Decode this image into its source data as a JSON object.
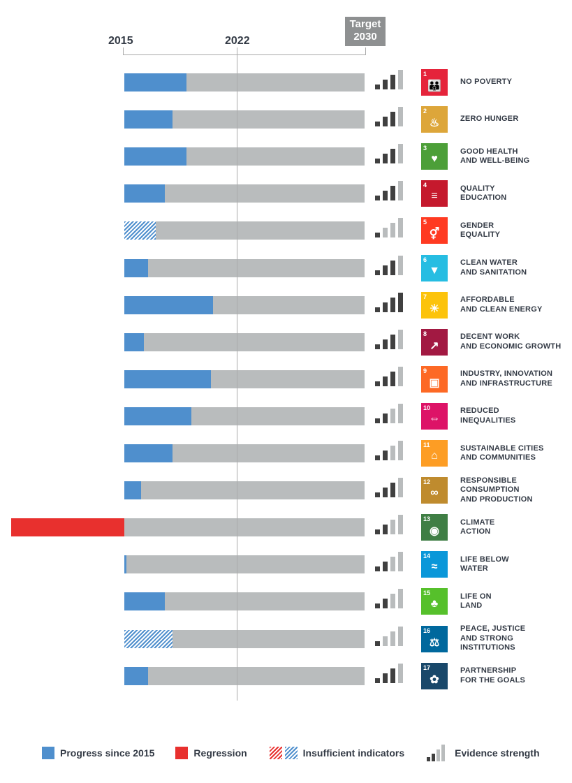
{
  "header": {
    "start_label": "2015",
    "mid_label": "2022",
    "target_label": "Target\n2030"
  },
  "colors": {
    "progress": "#4f8fcd",
    "regression": "#e8302e",
    "track": "#b9bcbd",
    "evidence_on": "#404040",
    "evidence_off": "#b9bcbd"
  },
  "chart_data": {
    "type": "bar",
    "orientation": "horizontal",
    "xlim": [
      2015,
      2030
    ],
    "value_unit": "fraction of progress needed from 2015 to 2030 target",
    "reference_lines": [
      2022
    ],
    "categories": [
      "NO POVERTY",
      "ZERO HUNGER",
      "GOOD HEALTH\nAND WELL-BEING",
      "QUALITY\nEDUCATION",
      "GENDER\nEQUALITY",
      "CLEAN WATER\nAND SANITATION",
      "AFFORDABLE\nAND CLEAN ENERGY",
      "DECENT WORK\nAND ECONOMIC GROWTH",
      "INDUSTRY, INNOVATION\nAND INFRASTRUCTURE",
      "REDUCED\nINEQUALITIES",
      "SUSTAINABLE CITIES\nAND COMMUNITIES",
      "RESPONSIBLE\nCONSUMPTION\nAND PRODUCTION",
      "CLIMATE\nACTION",
      "LIFE BELOW\nWATER",
      "LIFE ON\nLAND",
      "PEACE, JUSTICE\nAND STRONG\nINSTITUTIONS",
      "PARTNERSHIP\nFOR THE GOALS"
    ],
    "goal_numbers": [
      "1",
      "2",
      "3",
      "4",
      "5",
      "6",
      "7",
      "8",
      "9",
      "10",
      "11",
      "12",
      "13",
      "14",
      "15",
      "16",
      "17"
    ],
    "goal_colors": [
      "#E5243B",
      "#DDA63A",
      "#4C9F38",
      "#C5192D",
      "#FF3A21",
      "#26BDE2",
      "#FCC30B",
      "#A21942",
      "#FD6925",
      "#DD1367",
      "#FD9D24",
      "#BF8B2E",
      "#3F7E44",
      "#0A97D9",
      "#56C02B",
      "#00689D",
      "#19486A"
    ],
    "goal_icons": [
      "people",
      "bowl",
      "heartbeat",
      "book",
      "gender",
      "droplet",
      "sun",
      "growth-chart",
      "cubes",
      "equals-arrows",
      "buildings",
      "infinity",
      "eye-globe",
      "fish",
      "tree-bird",
      "dove-gavel",
      "flower"
    ],
    "values": [
      0.26,
      0.2,
      0.26,
      0.17,
      0.13,
      0.1,
      0.37,
      0.08,
      0.36,
      0.28,
      0.2,
      0.07,
      -0.47,
      0.01,
      0.17,
      0.2,
      0.1
    ],
    "insufficient_indicators": [
      false,
      false,
      false,
      false,
      true,
      false,
      false,
      false,
      false,
      false,
      false,
      false,
      false,
      false,
      false,
      true,
      false
    ],
    "evidence_strength": [
      3,
      3,
      3,
      3,
      1,
      3,
      4,
      3,
      3,
      2,
      2,
      3,
      2,
      2,
      2,
      1,
      3
    ],
    "evidence_strength_max": 4
  },
  "legend": {
    "progress": "Progress since 2015",
    "regression": "Regression",
    "insufficient": "Insufficient indicators",
    "evidence": "Evidence strength"
  }
}
